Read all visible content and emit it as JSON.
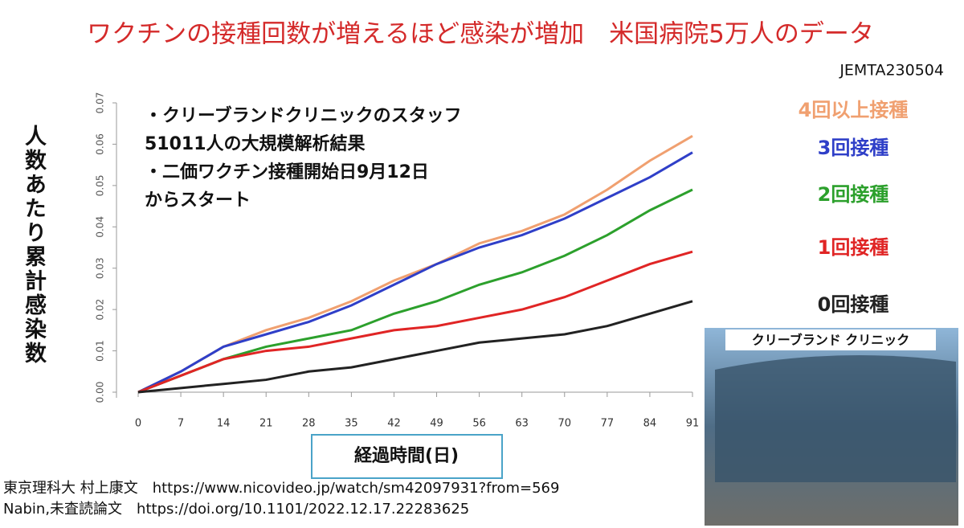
{
  "chart_data": {
    "type": "line",
    "title": "ワクチンの接種回数が増えるほど感染が増加　米国病院5万人のデータ",
    "code": "JEMTA230504",
    "y_label": "人数あたり累計感染数",
    "x_label": "経過時間(日)",
    "annotation": [
      "・クリーブランドクリニックのスタッフ",
      "51011人の大規模解析結果",
      "・二価ワクチン接種開始日9月12日",
      "からスタート"
    ],
    "photo_caption": "クリーブランド クリニック",
    "credits": [
      "東京理科大 村上康文　https://www.nicovideo.jp/watch/sm42097931?from=569",
      "Nabin,未査読論文　https://doi.org/10.1101/2022.12.17.22283625"
    ],
    "x": [
      0,
      7,
      14,
      21,
      28,
      35,
      42,
      49,
      56,
      63,
      70,
      77,
      84,
      91
    ],
    "xlim": [
      0,
      91
    ],
    "xticks": [
      0,
      7,
      14,
      21,
      28,
      35,
      42,
      49,
      56,
      63,
      70,
      77,
      84,
      91
    ],
    "ylim": [
      0,
      0.07
    ],
    "yticks": [
      {
        "value": 0,
        "label": "0.00"
      },
      {
        "value": 0.01,
        "label": "0.01"
      },
      {
        "value": 0.02,
        "label": "0.02"
      },
      {
        "value": 0.03,
        "label": "0.03"
      },
      {
        "value": 0.04,
        "label": "0.04"
      },
      {
        "value": 0.05,
        "label": "0.05"
      },
      {
        "value": 0.06,
        "label": "0.06"
      },
      {
        "value": 0.07,
        "label": "0.07"
      }
    ],
    "series": [
      {
        "name": "4回以上接種",
        "color": "#f0a070",
        "values": [
          0,
          0.005,
          0.011,
          0.015,
          0.018,
          0.022,
          0.027,
          0.031,
          0.036,
          0.039,
          0.043,
          0.049,
          0.056,
          0.062
        ]
      },
      {
        "name": "3回接種",
        "color": "#2f3fc8",
        "values": [
          0,
          0.005,
          0.011,
          0.014,
          0.017,
          0.021,
          0.026,
          0.031,
          0.035,
          0.038,
          0.042,
          0.047,
          0.052,
          0.058
        ]
      },
      {
        "name": "2回接種",
        "color": "#2ca02c",
        "values": [
          0,
          0.004,
          0.008,
          0.011,
          0.013,
          0.015,
          0.019,
          0.022,
          0.026,
          0.029,
          0.033,
          0.038,
          0.044,
          0.049
        ]
      },
      {
        "name": "1回接種",
        "color": "#e02525",
        "values": [
          0,
          0.004,
          0.008,
          0.01,
          0.011,
          0.013,
          0.015,
          0.016,
          0.018,
          0.02,
          0.023,
          0.027,
          0.031,
          0.034
        ]
      },
      {
        "name": "0回接種",
        "color": "#222222",
        "values": [
          0,
          0.001,
          0.002,
          0.003,
          0.005,
          0.006,
          0.008,
          0.01,
          0.012,
          0.013,
          0.014,
          0.016,
          0.019,
          0.022
        ]
      }
    ]
  }
}
